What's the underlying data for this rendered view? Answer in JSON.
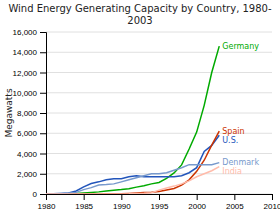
{
  "chart_data": {
    "type": "line",
    "title": "Wind Energy Generating Capacity by Country, 1980-\n2003",
    "ylabel": "Megawatts",
    "x": [
      1980,
      1981,
      1982,
      1983,
      1984,
      1985,
      1986,
      1987,
      1988,
      1989,
      1990,
      1991,
      1992,
      1993,
      1994,
      1995,
      1996,
      1997,
      1998,
      1999,
      2000,
      2001,
      2002,
      2003
    ],
    "series": [
      {
        "name": "Germany",
        "color": "#00aa00",
        "values": [
          10,
          15,
          20,
          30,
          50,
          100,
          150,
          210,
          290,
          380,
          440,
          520,
          680,
          820,
          1000,
          1136,
          1547,
          2080,
          2875,
          4443,
          6113,
          8754,
          12001,
          14609
        ]
      },
      {
        "name": "U.S.",
        "color": "#2255bb",
        "values": [
          10,
          30,
          60,
          100,
          300,
          700,
          1040,
          1200,
          1400,
          1500,
          1500,
          1700,
          1800,
          1700,
          1700,
          1700,
          1700,
          1700,
          1800,
          2100,
          2600,
          4200,
          4800,
          5800
        ]
      },
      {
        "name": "Spain",
        "color": "#cc3300",
        "values": [
          0,
          0,
          0,
          0,
          0,
          0,
          5,
          10,
          15,
          20,
          30,
          60,
          100,
          140,
          180,
          240,
          400,
          550,
          880,
          1400,
          2235,
          3337,
          4830,
          6202
        ]
      },
      {
        "name": "Denmark",
        "color": "#7799cc",
        "values": [
          10,
          30,
          60,
          90,
          160,
          430,
          630,
          880,
          930,
          1000,
          1200,
          1400,
          1600,
          1800,
          2000,
          2000,
          2100,
          2350,
          2600,
          2900,
          2900,
          2900,
          2900,
          3100
        ]
      },
      {
        "name": "India",
        "color": "#ffbbaa",
        "values": [
          0,
          0,
          0,
          0,
          0,
          0,
          0,
          0,
          0,
          0,
          10,
          20,
          50,
          70,
          120,
          380,
          600,
          780,
          1000,
          1300,
          1700,
          2000,
          2300,
          2700
        ]
      }
    ],
    "xlim": [
      1980,
      2010
    ],
    "xticks": [
      1980,
      1985,
      1990,
      1995,
      2000,
      2005,
      2010
    ],
    "ylim": [
      0,
      16000
    ],
    "yticks": [
      0,
      {
        "value": 2000,
        "label": "2,000"
      },
      {
        "value": 4000,
        "label": "4,000"
      },
      {
        "value": 6000,
        "label": "6,000"
      },
      {
        "value": 8000,
        "label": "8,000"
      },
      {
        "value": 10000,
        "label": "10,000"
      },
      {
        "value": 12000,
        "label": "12,000"
      },
      {
        "value": 14000,
        "label": "14,000"
      },
      {
        "value": 16000,
        "label": "16,000"
      }
    ],
    "grid": true
  }
}
